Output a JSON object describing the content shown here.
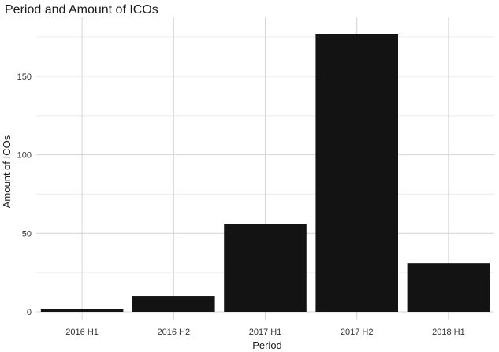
{
  "chart_data": {
    "type": "bar",
    "title": "Period and Amount of ICOs",
    "xlabel": "Period",
    "ylabel": "Amount of ICOs",
    "categories": [
      "2016 H1",
      "2016 H2",
      "2017 H1",
      "2017 H2",
      "2018 H1"
    ],
    "values": [
      2,
      10,
      56,
      177,
      31
    ],
    "ylim": [
      0,
      177
    ],
    "yticks": [
      0,
      50,
      100,
      150
    ],
    "grid": true,
    "legend": "none",
    "colors": {
      "bar": "#131313",
      "grid": "#d4d4d4",
      "background": "#ffffff"
    }
  }
}
